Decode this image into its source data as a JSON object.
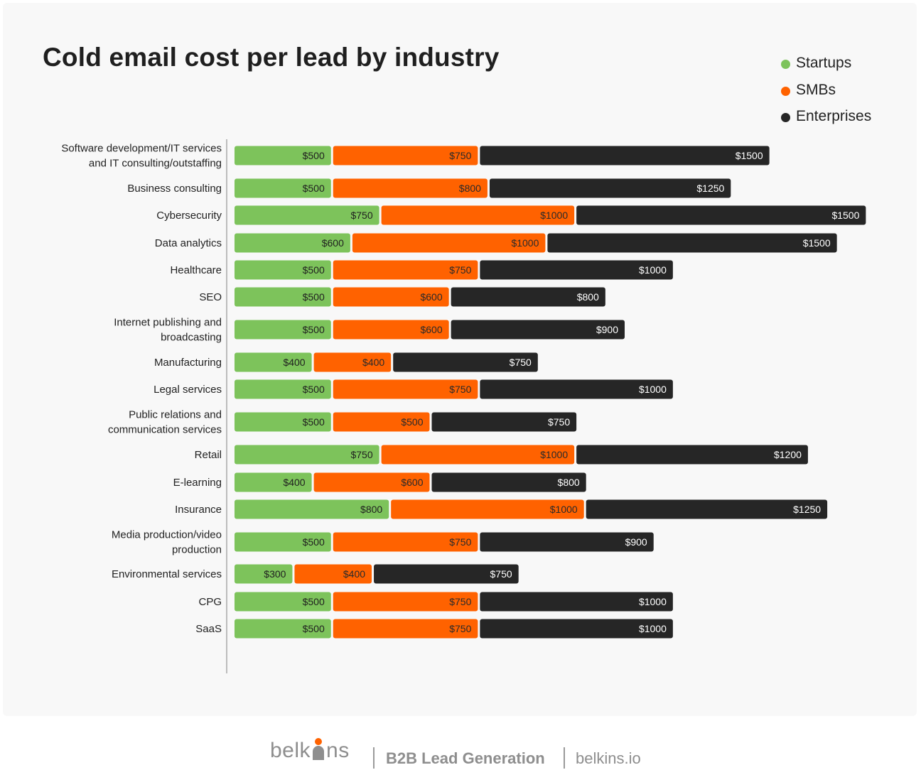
{
  "chart_data": {
    "type": "bar",
    "orientation": "horizontal",
    "stacked": true,
    "title": "Cold email cost per lead by industry",
    "value_prefix": "$",
    "legend_position": "top-right",
    "categories": [
      [
        "Software development/IT services",
        "and IT consulting/outstaffing"
      ],
      [
        "Business consulting"
      ],
      [
        "Cybersecurity"
      ],
      [
        "Data analytics"
      ],
      [
        "Healthcare"
      ],
      [
        "SEO"
      ],
      [
        "Internet publishing and",
        "broadcasting"
      ],
      [
        "Manufacturing"
      ],
      [
        "Legal services"
      ],
      [
        "Public relations and",
        "communication services"
      ],
      [
        "Retail"
      ],
      [
        "E-learning"
      ],
      [
        "Insurance"
      ],
      [
        "Media production/video",
        "production"
      ],
      [
        "Environmental services"
      ],
      [
        "CPG"
      ],
      [
        "SaaS"
      ]
    ],
    "series": [
      {
        "name": "Startups",
        "color": "#7dc35b",
        "values": [
          500,
          500,
          750,
          600,
          500,
          500,
          500,
          400,
          500,
          500,
          750,
          400,
          800,
          500,
          300,
          500,
          500
        ]
      },
      {
        "name": "SMBs",
        "color": "#ff6200",
        "values": [
          750,
          800,
          1000,
          1000,
          750,
          600,
          600,
          400,
          750,
          500,
          1000,
          600,
          1000,
          750,
          400,
          750,
          750
        ]
      },
      {
        "name": "Enterprises",
        "color": "#262626",
        "values": [
          1500,
          1250,
          1500,
          1500,
          1000,
          800,
          900,
          750,
          1000,
          750,
          1200,
          800,
          1250,
          900,
          750,
          1000,
          1000
        ]
      }
    ]
  },
  "footer": {
    "brand_start": "belk",
    "brand_end": "ns",
    "tagline": "B2B Lead Generation",
    "site": "belkins.io"
  }
}
